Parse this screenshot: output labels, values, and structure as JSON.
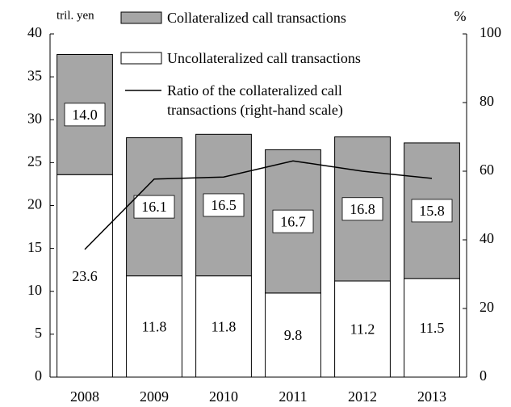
{
  "chart_data": {
    "type": "bar",
    "stacked": true,
    "categories": [
      "2008",
      "2009",
      "2010",
      "2011",
      "2012",
      "2013"
    ],
    "ylabel": "tril. yen",
    "y2label": "%",
    "ylim": [
      0,
      40
    ],
    "yticks": [
      0,
      5,
      10,
      15,
      20,
      25,
      30,
      35,
      40
    ],
    "y2lim": [
      0,
      100
    ],
    "y2ticks": [
      0,
      20,
      40,
      60,
      80,
      100
    ],
    "grid": false,
    "legend": "top",
    "series": [
      {
        "name": "Uncollateralized call transactions",
        "type": "bar",
        "color": "#ffffff",
        "values": [
          23.6,
          11.8,
          11.8,
          9.8,
          11.2,
          11.5
        ],
        "value_labels": [
          "23.6",
          "11.8",
          "11.8",
          "9.8",
          "11.2",
          "11.5"
        ]
      },
      {
        "name": "Collateralized call transactions",
        "type": "bar",
        "color": "#a6a6a6",
        "values": [
          14.0,
          16.1,
          16.5,
          16.7,
          16.8,
          15.8
        ],
        "value_labels": [
          "14.0",
          "16.1",
          "16.5",
          "16.7",
          "16.8",
          "15.8"
        ]
      },
      {
        "name": "Ratio of the collateralized call transactions (right-hand scale)",
        "type": "line",
        "axis": "y2",
        "color": "#000000",
        "values": [
          37.2,
          57.7,
          58.3,
          63.0,
          60.0,
          57.9
        ]
      }
    ]
  }
}
